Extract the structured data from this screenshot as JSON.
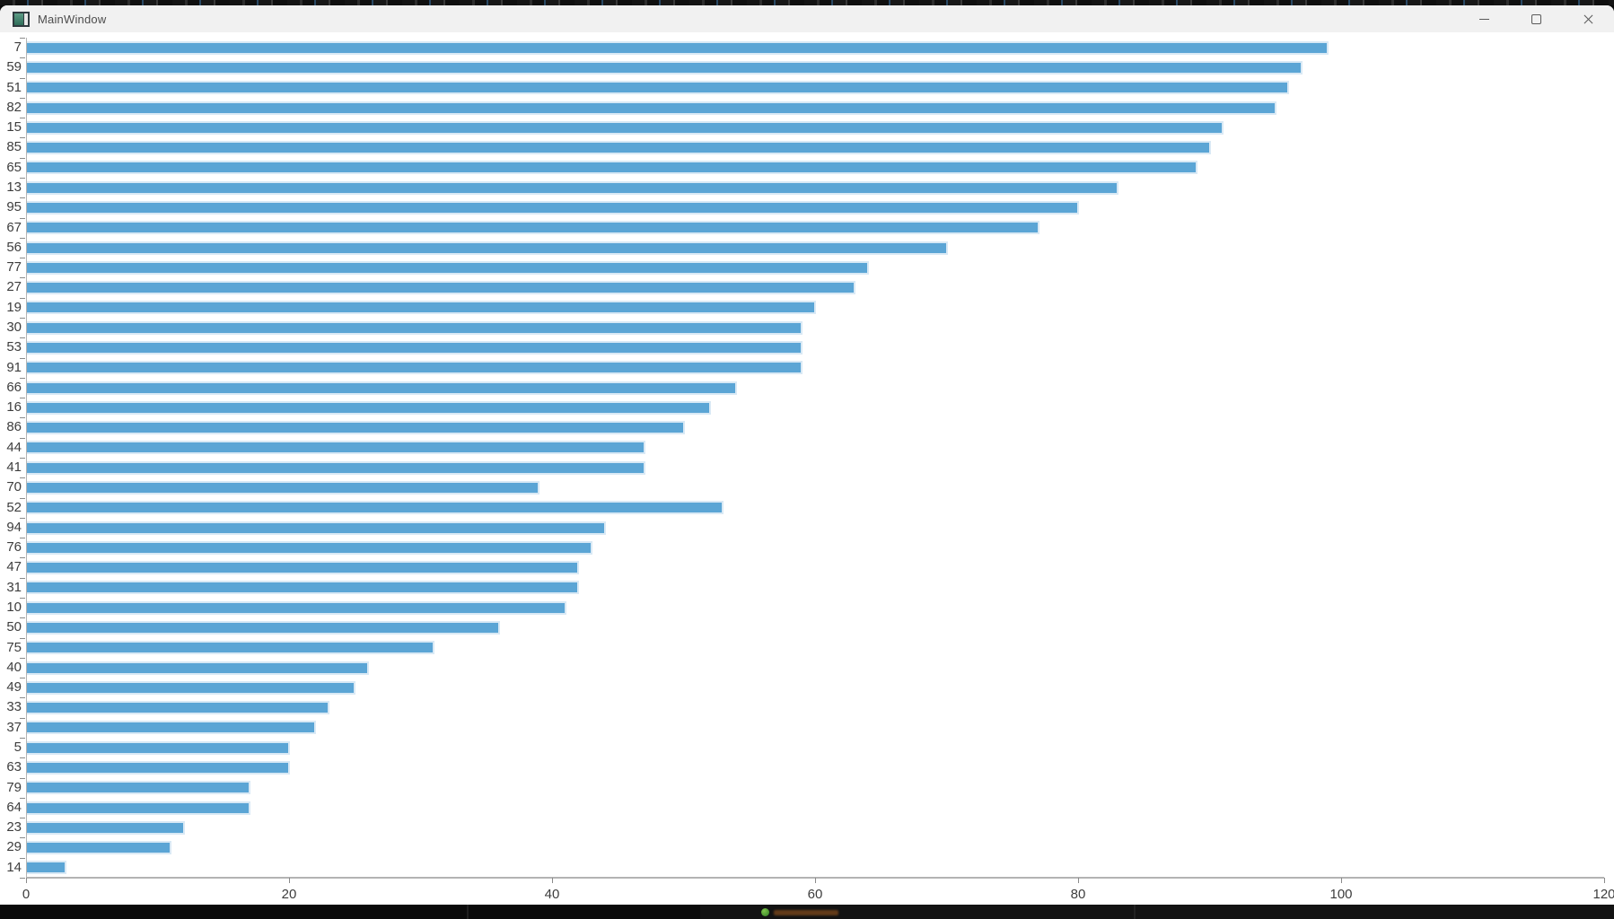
{
  "window": {
    "title": "MainWindow",
    "controls": [
      {
        "name": "minimize"
      },
      {
        "name": "maximize"
      },
      {
        "name": "close"
      }
    ]
  },
  "chart_data": {
    "type": "bar",
    "orientation": "horizontal",
    "categories": [
      7,
      59,
      51,
      82,
      15,
      85,
      65,
      13,
      95,
      67,
      56,
      77,
      27,
      19,
      30,
      53,
      91,
      66,
      16,
      86,
      44,
      41,
      70,
      52,
      94,
      76,
      47,
      31,
      10,
      50,
      75,
      40,
      49,
      33,
      37,
      5,
      63,
      79,
      64,
      23,
      29,
      14
    ],
    "values": [
      99,
      97,
      96,
      95,
      91,
      90,
      89,
      83,
      80,
      77,
      70,
      64,
      63,
      60,
      59,
      59,
      59,
      54,
      52,
      50,
      47,
      47,
      39,
      53,
      44,
      43,
      42,
      42,
      41,
      36,
      31,
      26,
      25,
      23,
      22,
      20,
      20,
      17,
      17,
      12,
      11,
      3
    ],
    "x_ticks": [
      0,
      20,
      40,
      60,
      80,
      100,
      120
    ],
    "xlim": [
      0,
      120
    ],
    "grid": false,
    "legend": "none",
    "colors": {
      "bar_fill": "#5ba5d5",
      "bar_border": "#d9e9f5",
      "axis_line": "#b3b3b3",
      "tick_mark": "#8a8a8a",
      "tick_label": "#3d3d3d",
      "titlebar_bg": "#f1f1f1",
      "plot_bg": "#ffffff"
    }
  }
}
